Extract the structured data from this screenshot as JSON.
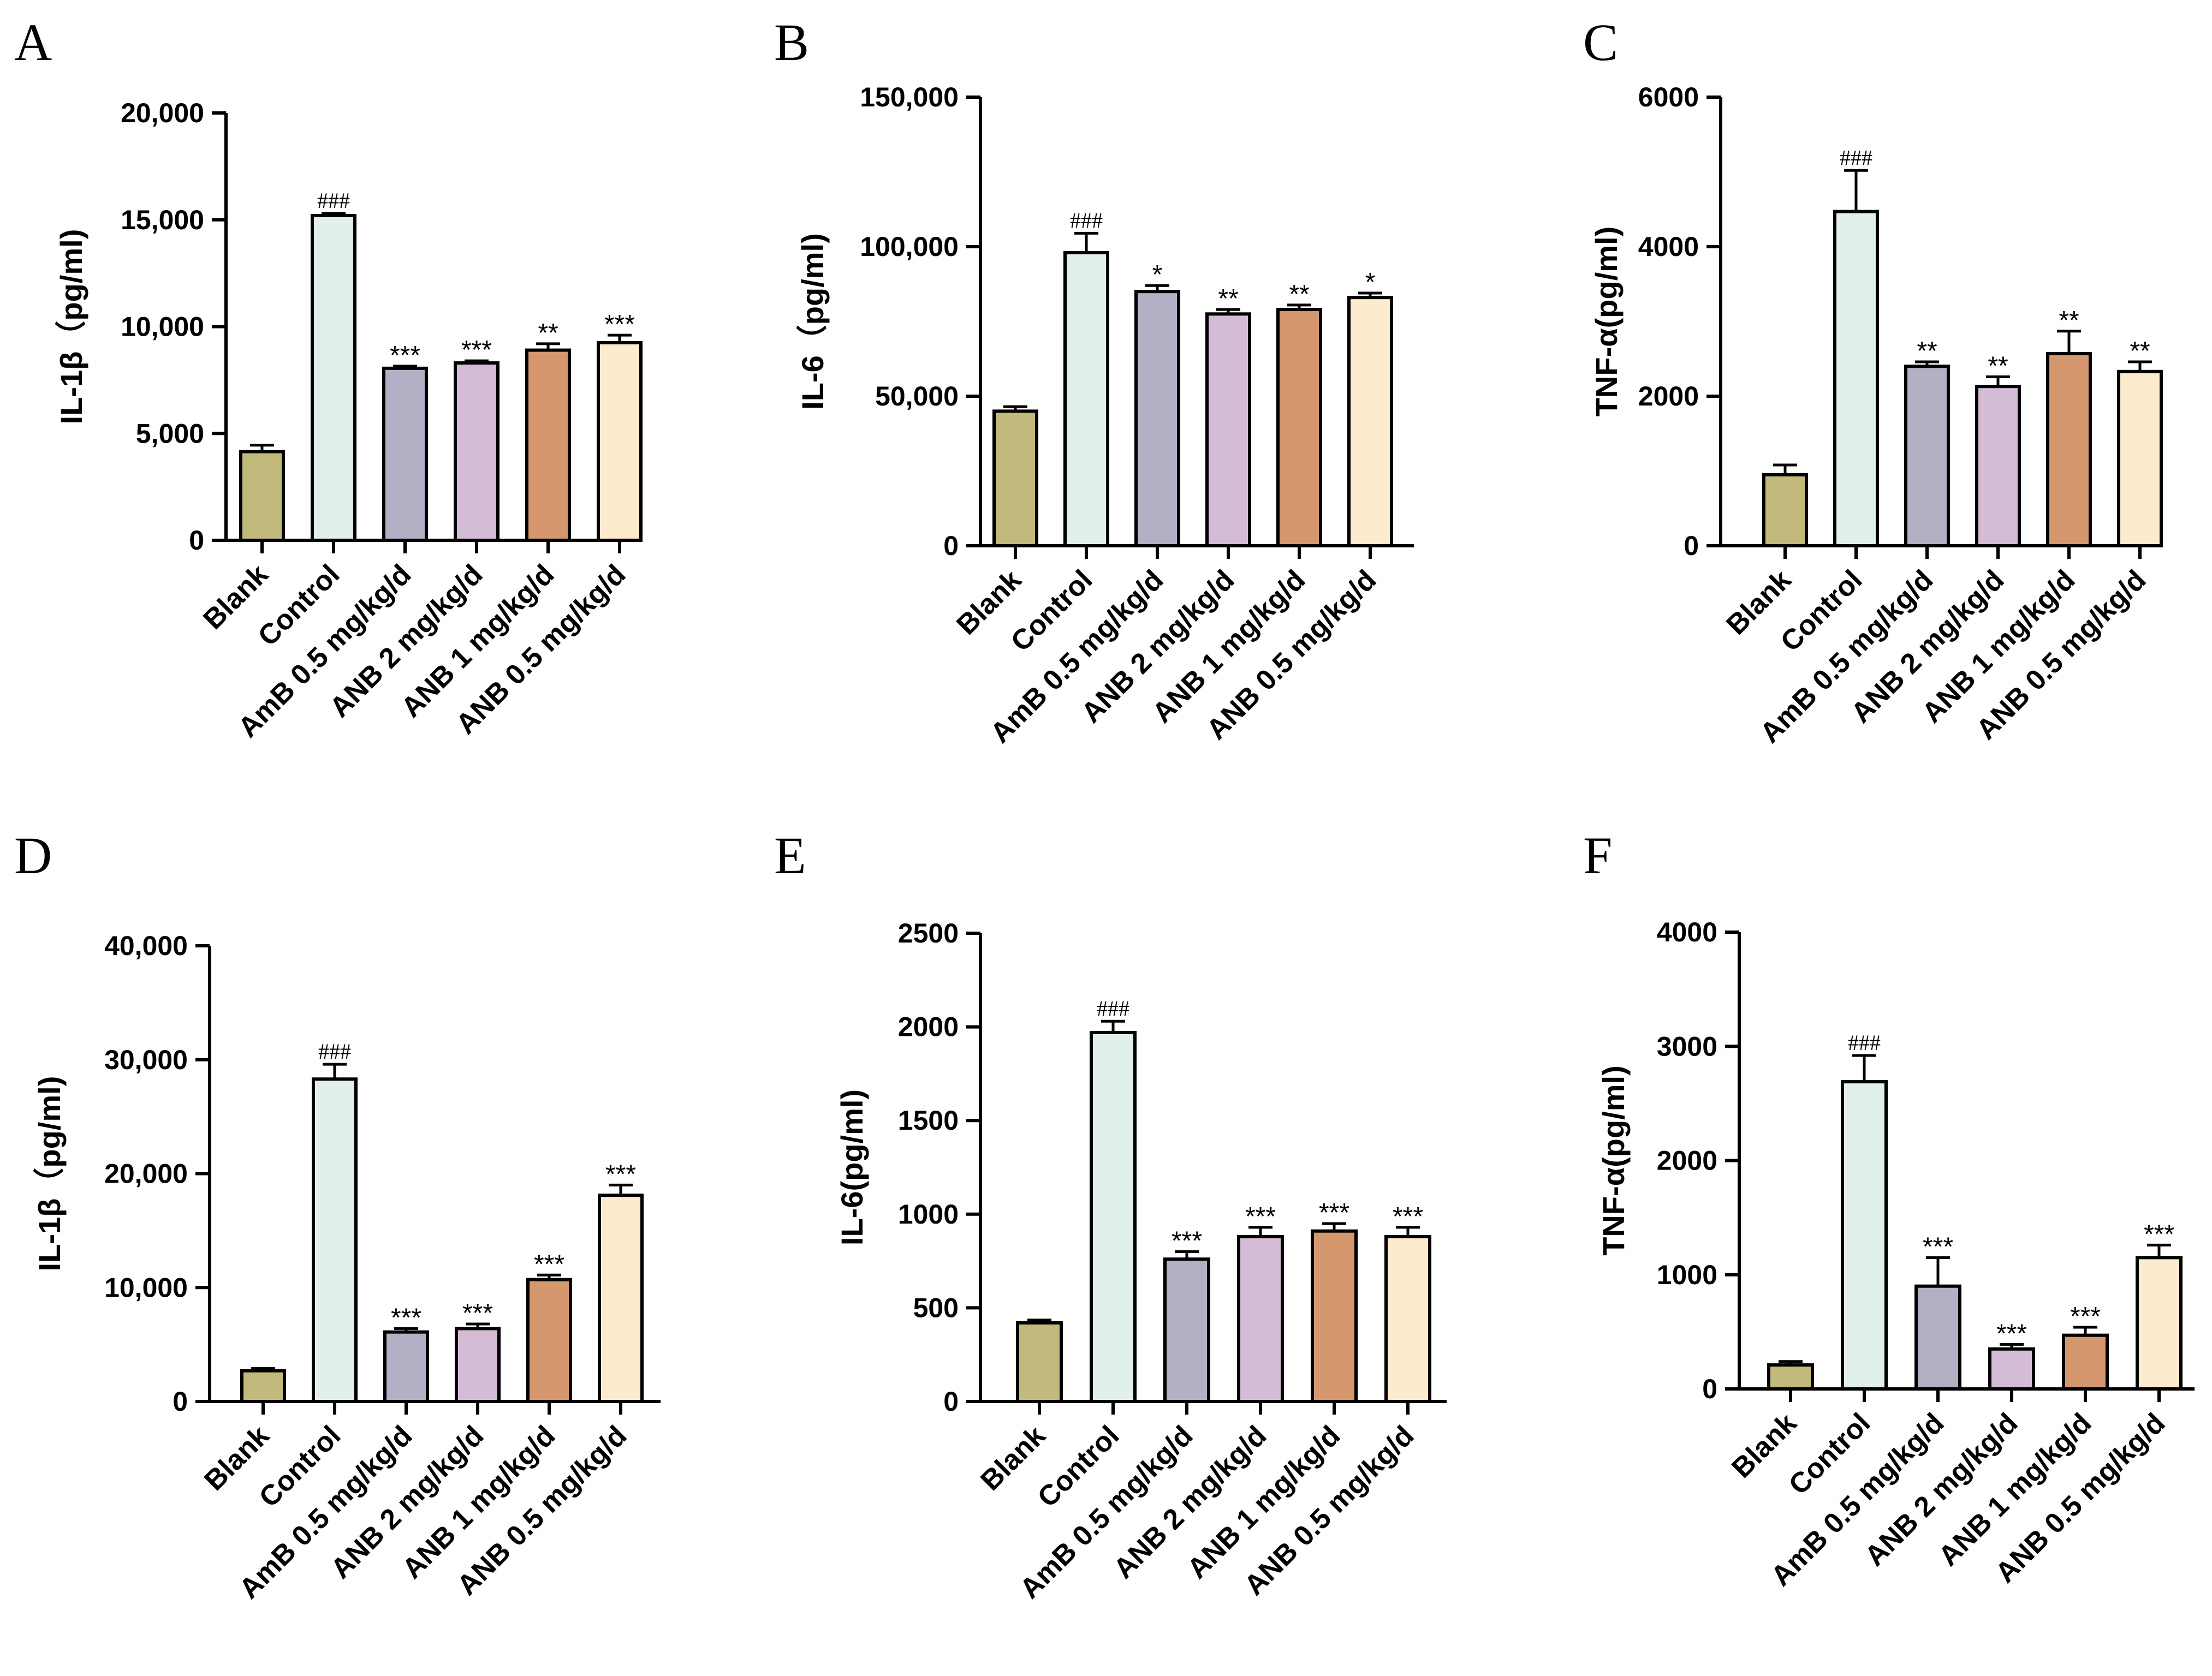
{
  "colors": [
    "#c2b97d",
    "#e1efed",
    "#b1b0c5",
    "#d5bcd6",
    "#d5976d",
    "#fdebcd"
  ],
  "chart_data": [
    {
      "type": "bar",
      "panel": "A",
      "ylabel": "IL-1β（pg/ml)",
      "ylim": [
        0,
        20000
      ],
      "yticks": [
        "0",
        "5,000",
        "10,000",
        "15,000",
        "20,000"
      ],
      "yticks_values": [
        0,
        5000,
        10000,
        15000,
        20000
      ],
      "categories": [
        "Blank",
        "Control",
        "AmB 0.5 mg/kg/d",
        "ANB 2 mg/kg/d",
        "ANB 1 mg/kg/d",
        "ANB 0.5 mg/kg/d"
      ],
      "values": [
        4150,
        15200,
        8050,
        8300,
        8900,
        9250
      ],
      "errors": [
        300,
        100,
        100,
        100,
        300,
        350
      ],
      "annotations": [
        "",
        "###",
        "***",
        "***",
        "**",
        "***"
      ]
    },
    {
      "type": "bar",
      "panel": "B",
      "ylabel": "IL-6（pg/ml)",
      "ylim": [
        0,
        150000
      ],
      "yticks": [
        "0",
        "50,000",
        "100,000",
        "150,000"
      ],
      "yticks_values": [
        0,
        50000,
        100000,
        150000
      ],
      "categories": [
        "Blank",
        "Control",
        "AmB 0.5 mg/kg/d",
        "ANB 2 mg/kg/d",
        "ANB 1 mg/kg/d",
        "ANB 0.5 mg/kg/d"
      ],
      "values": [
        45000,
        98000,
        85000,
        77500,
        79000,
        83000
      ],
      "errors": [
        1500,
        6500,
        2000,
        1500,
        1500,
        1500
      ],
      "annotations": [
        "",
        "###",
        "*",
        "**",
        "**",
        "*"
      ]
    },
    {
      "type": "bar",
      "panel": "C",
      "ylabel": "TNF-α(pg/ml)",
      "ylim": [
        0,
        6000
      ],
      "yticks": [
        "0",
        "2000",
        "4000",
        "6000"
      ],
      "yticks_values": [
        0,
        2000,
        4000,
        6000
      ],
      "categories": [
        "Blank",
        "Control",
        "AmB 0.5 mg/kg/d",
        "ANB 2 mg/kg/d",
        "ANB 1 mg/kg/d",
        "ANB 0.5 mg/kg/d"
      ],
      "values": [
        950,
        4470,
        2400,
        2130,
        2570,
        2330
      ],
      "errors": [
        130,
        550,
        60,
        130,
        300,
        130
      ],
      "annotations": [
        "",
        "###",
        "**",
        "**",
        "**",
        "**"
      ]
    },
    {
      "type": "bar",
      "panel": "D",
      "ylabel": "IL-1β（pg/ml)",
      "ylim": [
        0,
        40000
      ],
      "yticks": [
        "0",
        "10,000",
        "20,000",
        "30,000",
        "40,000"
      ],
      "yticks_values": [
        0,
        10000,
        20000,
        30000,
        40000
      ],
      "categories": [
        "Blank",
        "Control",
        "AmB 0.5 mg/kg/d",
        "ANB 2 mg/kg/d",
        "ANB 1 mg/kg/d",
        "ANB 0.5 mg/kg/d"
      ],
      "values": [
        2700,
        28300,
        6100,
        6400,
        10700,
        18100
      ],
      "errors": [
        200,
        1300,
        300,
        400,
        400,
        900
      ],
      "annotations": [
        "",
        "###",
        "***",
        "***",
        "***",
        "***"
      ]
    },
    {
      "type": "bar",
      "panel": "E",
      "ylabel": "IL-6(pg/ml)",
      "ylim": [
        0,
        2500
      ],
      "yticks": [
        "0",
        "500",
        "1000",
        "1500",
        "2000",
        "2500"
      ],
      "yticks_values": [
        0,
        500,
        1000,
        1500,
        2000,
        2500
      ],
      "categories": [
        "Blank",
        "Control",
        "AmB 0.5 mg/kg/d",
        "ANB 2 mg/kg/d",
        "ANB 1 mg/kg/d",
        "ANB 0.5 mg/kg/d"
      ],
      "values": [
        420,
        1970,
        760,
        880,
        910,
        880
      ],
      "errors": [
        15,
        60,
        40,
        50,
        40,
        50
      ],
      "annotations": [
        "",
        "###",
        "***",
        "***",
        "***",
        "***"
      ]
    },
    {
      "type": "bar",
      "panel": "F",
      "ylabel": "TNF-α(pg/ml)",
      "ylim": [
        0,
        4000
      ],
      "yticks": [
        "0",
        "1000",
        "2000",
        "3000",
        "4000"
      ],
      "yticks_values": [
        0,
        1000,
        2000,
        3000,
        4000
      ],
      "categories": [
        "Blank",
        "Control",
        "AmB 0.5 mg/kg/d",
        "ANB 2 mg/kg/d",
        "ANB 1 mg/kg/d",
        "ANB 0.5 mg/kg/d"
      ],
      "values": [
        210,
        2690,
        900,
        350,
        470,
        1150
      ],
      "errors": [
        30,
        230,
        250,
        40,
        70,
        110
      ],
      "annotations": [
        "",
        "###",
        "***",
        "***",
        "***",
        "***"
      ]
    }
  ]
}
